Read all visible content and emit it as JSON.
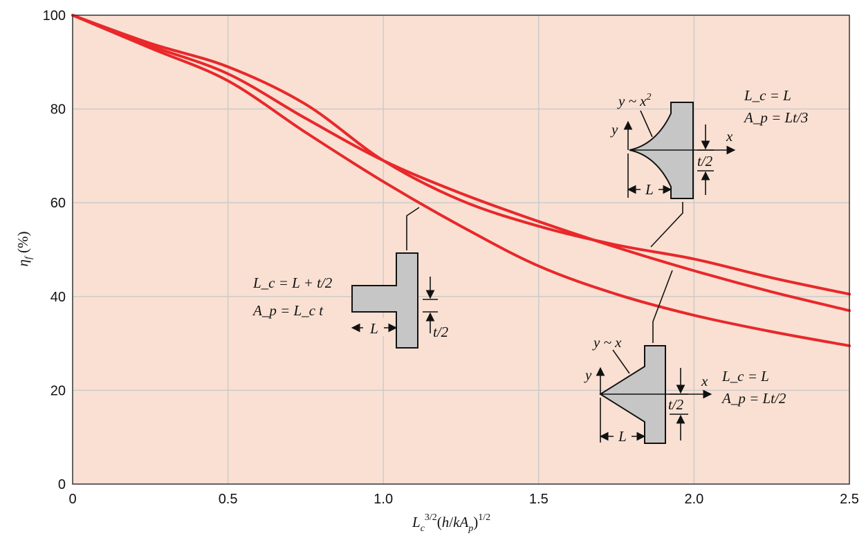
{
  "chart_data": {
    "type": "line",
    "xlabel": "L_c^{3/2}(h/kA_p)^{1/2}",
    "ylabel": "η_f (%)",
    "xlim": [
      0,
      2.5
    ],
    "ylim": [
      0,
      100
    ],
    "x_ticks": [
      "0",
      "0.5",
      "1.0",
      "1.5",
      "2.0",
      "2.5"
    ],
    "y_ticks": [
      "0",
      "20",
      "40",
      "60",
      "80",
      "100"
    ],
    "grid": true,
    "background": "#f9e0d2",
    "line_color": "#e8282b",
    "series": [
      {
        "x": [
          0,
          0.25,
          0.5,
          0.75,
          1.0,
          1.25,
          1.5,
          1.75,
          2.0,
          2.25,
          2.5
        ],
        "y": [
          100,
          93,
          86,
          75,
          64.5,
          55,
          46.5,
          40.5,
          36,
          32.5,
          29.5
        ]
      },
      {
        "x": [
          0,
          0.25,
          0.5,
          0.75,
          1.0,
          1.25,
          1.5,
          1.75,
          2.0,
          2.25,
          2.5
        ],
        "y": [
          100,
          93.5,
          87.5,
          78,
          69,
          62,
          56,
          50.5,
          45.5,
          41,
          37
        ]
      },
      {
        "x": [
          0,
          0.25,
          0.5,
          0.75,
          1.0,
          1.25,
          1.5,
          1.75,
          2.0,
          2.25,
          2.5
        ],
        "y": [
          100,
          94,
          89,
          81,
          69,
          60.5,
          55,
          51,
          48,
          44,
          40.5
        ]
      }
    ],
    "annotations": [
      {
        "shape": "rectangular",
        "lc": "L_c = L + t/2",
        "ap": "A_p = L_c t",
        "dim_length": "L",
        "dim_thickness": "t/2"
      },
      {
        "shape": "parabolic",
        "profile": "y ~ x^2",
        "lc": "L_c = L",
        "ap": "A_p = Lt/3",
        "dim_length": "L",
        "dim_thickness": "t/2",
        "axis_x": "x",
        "axis_y": "y"
      },
      {
        "shape": "triangular",
        "profile": "y ~ x",
        "lc": "L_c = L",
        "ap": "A_p = Lt/2",
        "dim_length": "L",
        "dim_thickness": "t/2",
        "axis_x": "x",
        "axis_y": "y"
      }
    ]
  }
}
